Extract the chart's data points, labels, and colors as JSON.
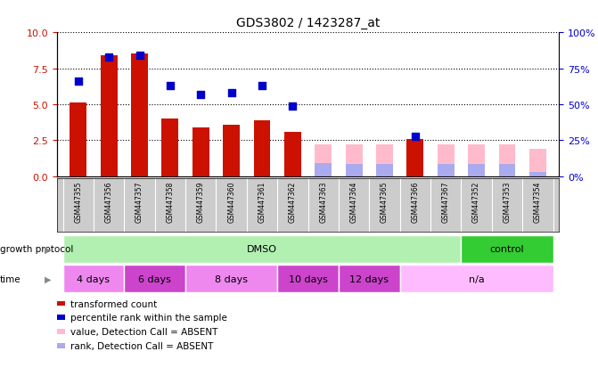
{
  "title": "GDS3802 / 1423287_at",
  "samples": [
    "GSM447355",
    "GSM447356",
    "GSM447357",
    "GSM447358",
    "GSM447359",
    "GSM447360",
    "GSM447361",
    "GSM447362",
    "GSM447363",
    "GSM447364",
    "GSM447365",
    "GSM447366",
    "GSM447367",
    "GSM447352",
    "GSM447353",
    "GSM447354"
  ],
  "red_bars": [
    5.1,
    8.4,
    8.5,
    4.0,
    3.4,
    3.6,
    3.9,
    3.1,
    null,
    null,
    null,
    2.6,
    null,
    null,
    null,
    null
  ],
  "pink_bars": [
    null,
    null,
    null,
    null,
    null,
    null,
    null,
    null,
    2.2,
    2.2,
    2.2,
    null,
    2.2,
    2.2,
    2.2,
    1.9
  ],
  "blue_squares": [
    6.6,
    8.3,
    8.4,
    6.3,
    5.7,
    5.8,
    6.3,
    4.9,
    null,
    null,
    null,
    2.8,
    null,
    null,
    null,
    null
  ],
  "lavender_bars": [
    null,
    null,
    null,
    null,
    null,
    null,
    null,
    null,
    0.9,
    0.85,
    0.85,
    null,
    0.85,
    0.85,
    0.85,
    0.3
  ],
  "ylim_left": [
    0,
    10
  ],
  "ylim_right": [
    0,
    100
  ],
  "yticks_left": [
    0,
    2.5,
    5.0,
    7.5,
    10
  ],
  "yticks_right": [
    0,
    25,
    50,
    75,
    100
  ],
  "growth_protocol_groups": [
    {
      "label": "DMSO",
      "start": 0,
      "end": 13,
      "color": "#b2f0b2"
    },
    {
      "label": "control",
      "start": 13,
      "end": 16,
      "color": "#33cc33"
    }
  ],
  "time_groups": [
    {
      "label": "4 days",
      "start": 0,
      "end": 2,
      "color": "#ee88ee"
    },
    {
      "label": "6 days",
      "start": 2,
      "end": 4,
      "color": "#cc44cc"
    },
    {
      "label": "8 days",
      "start": 4,
      "end": 7,
      "color": "#ee88ee"
    },
    {
      "label": "10 days",
      "start": 7,
      "end": 9,
      "color": "#cc44cc"
    },
    {
      "label": "12 days",
      "start": 9,
      "end": 11,
      "color": "#cc44cc"
    },
    {
      "label": "n/a",
      "start": 11,
      "end": 16,
      "color": "#ffbbff"
    }
  ],
  "red_color": "#cc1100",
  "pink_color": "#ffbbcc",
  "blue_color": "#0000cc",
  "lavender_color": "#aaaaee",
  "bar_width": 0.55,
  "dot_size": 35,
  "ylabel_left_color": "#cc1100",
  "ylabel_right_color": "#0000cc",
  "sample_bg_color": "#cccccc",
  "legend_items": [
    {
      "color": "#cc1100",
      "label": "transformed count"
    },
    {
      "color": "#0000cc",
      "label": "percentile rank within the sample"
    },
    {
      "color": "#ffbbcc",
      "label": "value, Detection Call = ABSENT"
    },
    {
      "color": "#aaaaee",
      "label": "rank, Detection Call = ABSENT"
    }
  ]
}
